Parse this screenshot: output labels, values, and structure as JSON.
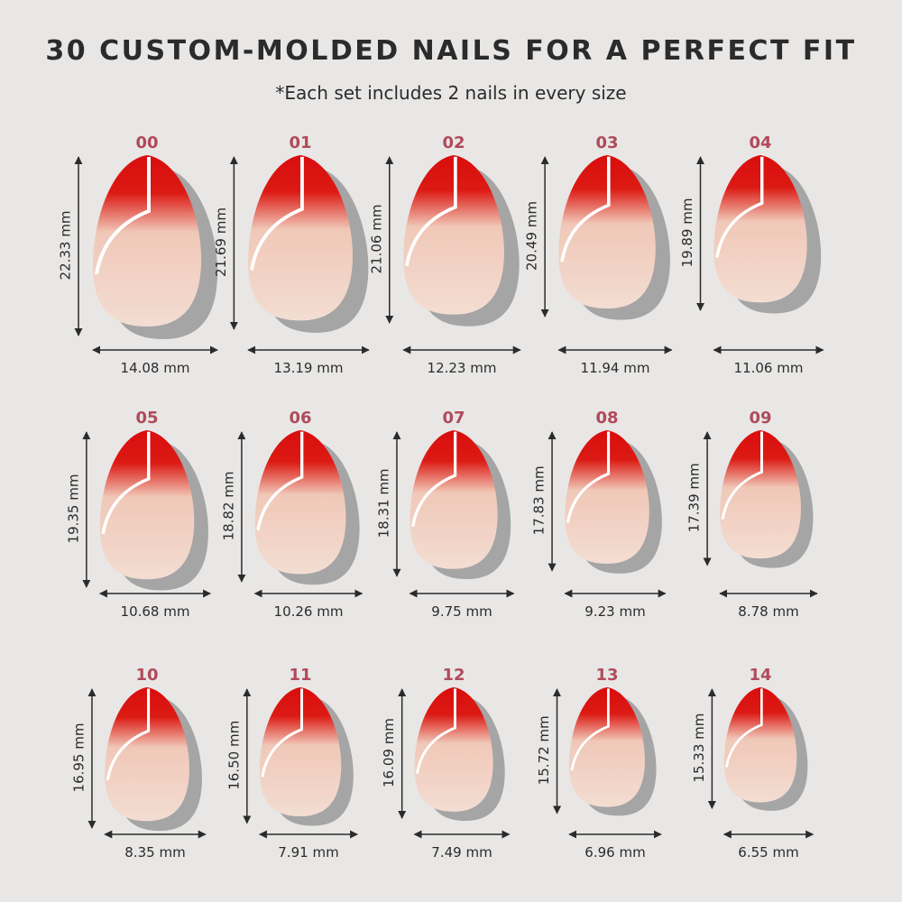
{
  "header": {
    "title": "30 CUSTOM-MOLDED NAILS FOR A PERFECT FIT",
    "subtitle": "*Each set includes 2 nails in every size"
  },
  "nails": [
    {
      "size": "00",
      "length": "22.33 mm",
      "width": "14.08 mm"
    },
    {
      "size": "01",
      "length": "21.69 mm",
      "width": "13.19 mm"
    },
    {
      "size": "02",
      "length": "21.06 mm",
      "width": "12.23 mm"
    },
    {
      "size": "03",
      "length": "20.49 mm",
      "width": "11.94 mm"
    },
    {
      "size": "04",
      "length": "19.89 mm",
      "width": "11.06 mm"
    },
    {
      "size": "05",
      "length": "19.35 mm",
      "width": "10.68 mm"
    },
    {
      "size": "06",
      "length": "18.82 mm",
      "width": "10.26 mm"
    },
    {
      "size": "07",
      "length": "18.31 mm",
      "width": "9.75 mm"
    },
    {
      "size": "08",
      "length": "17.83 mm",
      "width": "9.23 mm"
    },
    {
      "size": "09",
      "length": "17.39 mm",
      "width": "8.78 mm"
    },
    {
      "size": "10",
      "length": "16.95 mm",
      "width": "8.35 mm"
    },
    {
      "size": "11",
      "length": "16.50 mm",
      "width": "7.91 mm"
    },
    {
      "size": "12",
      "length": "16.09 mm",
      "width": "7.49 mm"
    },
    {
      "size": "13",
      "length": "15.72 mm",
      "width": "6.96 mm"
    },
    {
      "size": "14",
      "length": "15.33 mm",
      "width": "6.55 mm"
    }
  ]
}
